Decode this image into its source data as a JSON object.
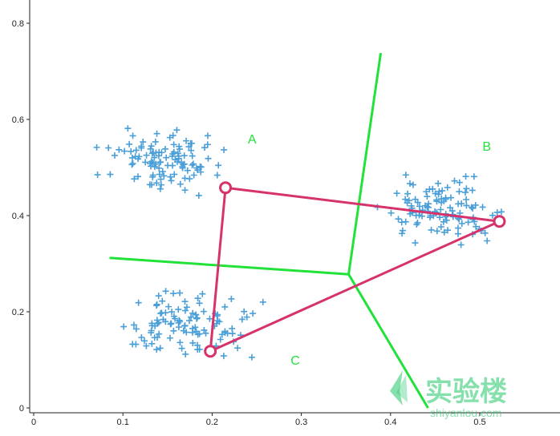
{
  "chart_data": {
    "type": "scatter",
    "title": "",
    "xlabel": "",
    "ylabel": "",
    "xlim": [
      -0.01,
      0.58
    ],
    "ylim": [
      -0.01,
      0.85
    ],
    "x_ticks": [
      "0",
      "0.1",
      "0.2",
      "0.3",
      "0.4",
      "0.5"
    ],
    "x_tick_values": [
      0,
      0.1,
      0.2,
      0.3,
      0.4,
      0.5
    ],
    "y_ticks": [
      "0",
      "0.2",
      "0.4",
      "0.6",
      "0.8"
    ],
    "y_tick_values": [
      0,
      0.2,
      0.4,
      0.6,
      0.8
    ],
    "grid": false,
    "clusters": [
      {
        "label": "A",
        "center": [
          0.147,
          0.515
        ],
        "spread": [
          0.05,
          0.05
        ],
        "count": 110,
        "label_pos": [
          0.24,
          0.55
        ]
      },
      {
        "label": "B",
        "center": [
          0.461,
          0.41
        ],
        "spread": [
          0.052,
          0.05
        ],
        "count": 110,
        "label_pos": [
          0.503,
          0.535
        ]
      },
      {
        "label": "C",
        "center": [
          0.167,
          0.17
        ],
        "spread": [
          0.063,
          0.055
        ],
        "count": 110,
        "label_pos": [
          0.288,
          0.09
        ]
      }
    ],
    "centroids": [
      {
        "name": "A",
        "x": 0.215,
        "y": 0.458
      },
      {
        "name": "B",
        "x": 0.522,
        "y": 0.388
      },
      {
        "name": "C",
        "x": 0.198,
        "y": 0.118
      }
    ],
    "centroid_links": [
      {
        "from": "A",
        "to": "B"
      },
      {
        "from": "B",
        "to": "C"
      },
      {
        "from": "C",
        "to": "A"
      }
    ],
    "voronoi_boundaries": [
      {
        "name": "boundary-top",
        "points": [
          [
            0.353,
            0.278
          ],
          [
            0.389,
            0.738
          ]
        ]
      },
      {
        "name": "boundary-left",
        "points": [
          [
            0.353,
            0.278
          ],
          [
            0.085,
            0.312
          ]
        ]
      },
      {
        "name": "boundary-bottom",
        "points": [
          [
            0.353,
            0.278
          ],
          [
            0.442,
            0.0
          ]
        ]
      }
    ],
    "colors": {
      "points": "#4a9fd8",
      "centroids": "#d6336c",
      "links": "#d6336c",
      "boundaries": "#22e23a",
      "labels": "#22e23a",
      "axis": "#222222"
    }
  },
  "watermark": {
    "text_cn": "实验楼",
    "text_url": "shiyanlou.com",
    "color": "#22c76a"
  }
}
